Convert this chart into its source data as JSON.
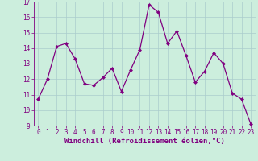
{
  "xlabel": "Windchill (Refroidissement éolien,°C)",
  "x": [
    0,
    1,
    2,
    3,
    4,
    5,
    6,
    7,
    8,
    9,
    10,
    11,
    12,
    13,
    14,
    15,
    16,
    17,
    18,
    19,
    20,
    21,
    22,
    23
  ],
  "y": [
    10.7,
    12.0,
    14.1,
    14.3,
    13.3,
    11.7,
    11.6,
    12.1,
    12.7,
    11.2,
    12.6,
    13.9,
    16.8,
    16.3,
    14.3,
    15.1,
    13.5,
    11.8,
    12.5,
    13.7,
    13.0,
    11.1,
    10.7,
    9.1
  ],
  "line_color": "#800080",
  "marker": "D",
  "marker_size": 2.0,
  "bg_color": "#cceedd",
  "grid_color": "#aacccc",
  "ylim": [
    9,
    17
  ],
  "xlim_min": -0.5,
  "xlim_max": 23.5,
  "yticks": [
    9,
    10,
    11,
    12,
    13,
    14,
    15,
    16,
    17
  ],
  "xticks": [
    0,
    1,
    2,
    3,
    4,
    5,
    6,
    7,
    8,
    9,
    10,
    11,
    12,
    13,
    14,
    15,
    16,
    17,
    18,
    19,
    20,
    21,
    22,
    23
  ],
  "tick_label_fontsize": 5.5,
  "xlabel_fontsize": 6.5,
  "label_color": "#800080",
  "linewidth": 0.9
}
